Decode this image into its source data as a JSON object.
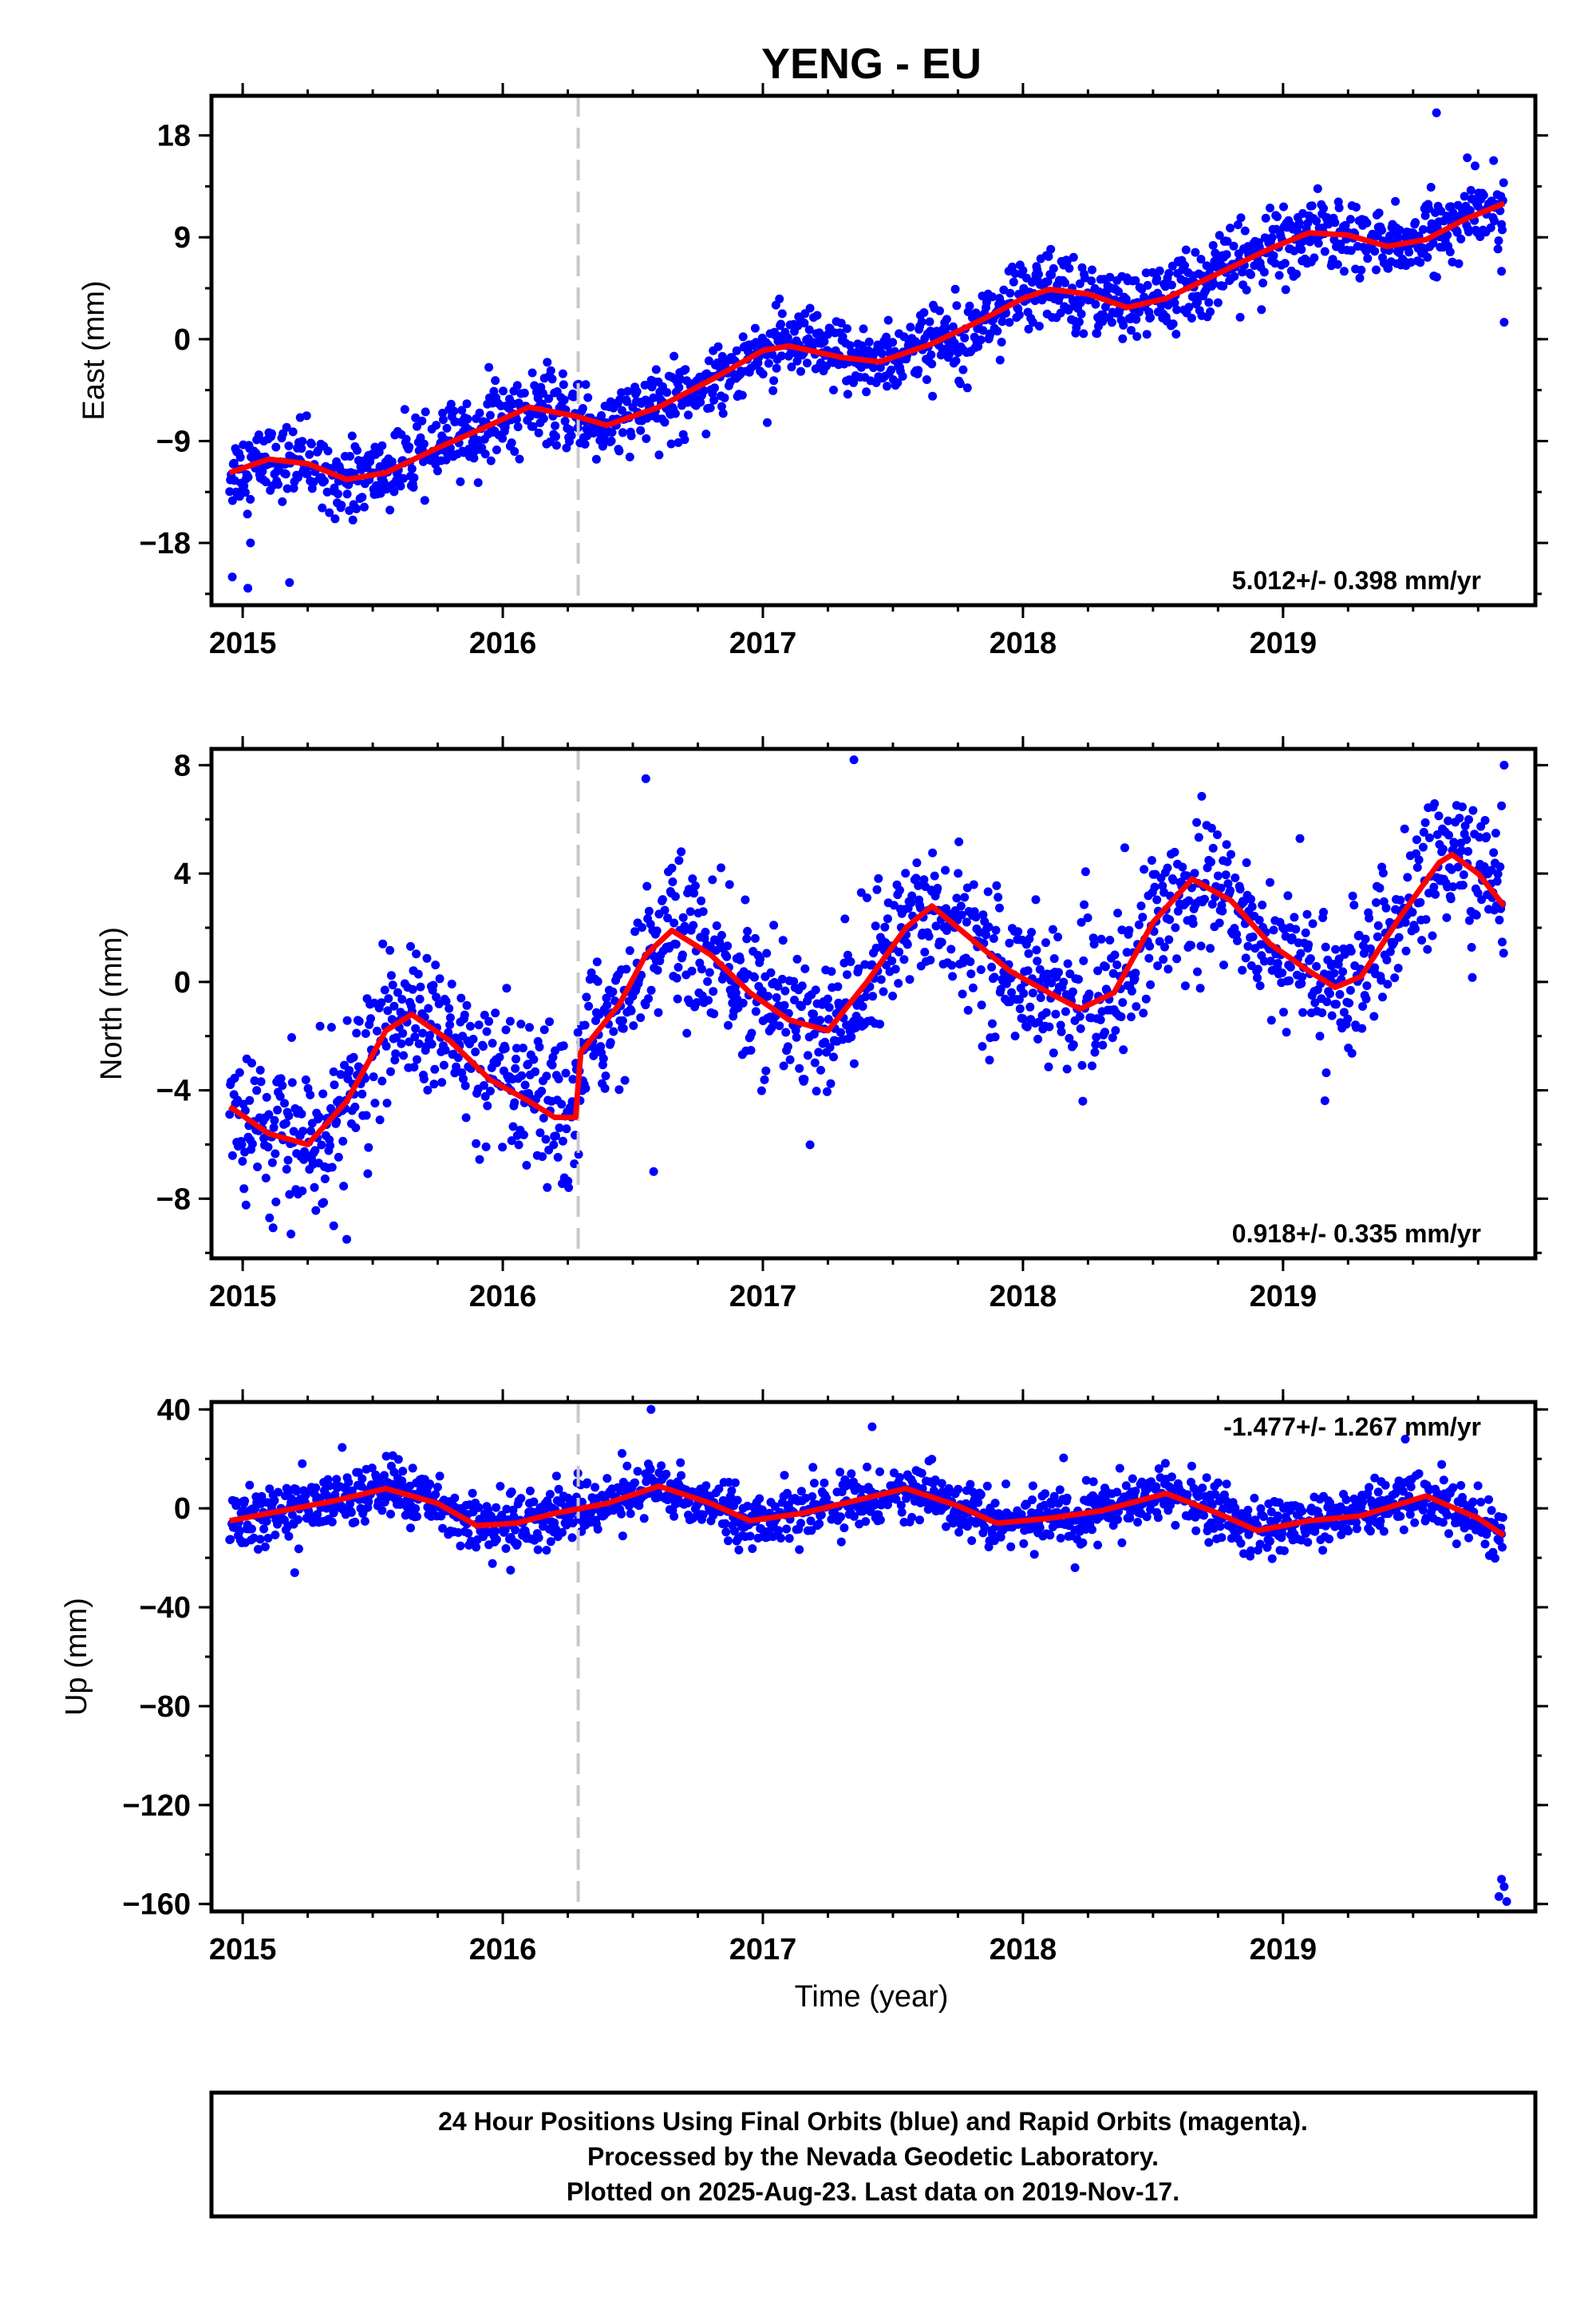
{
  "chart_data": {
    "type": "scatter",
    "title": "YENG - EU",
    "xlabel": "Time (year)",
    "xlim": [
      2014.88,
      2019.97
    ],
    "x_ticks": [
      2015,
      2016,
      2017,
      2018,
      2019
    ],
    "equipment_change_year": 2016.29,
    "colors": {
      "points": "#0000ff",
      "fit": "#ff0000",
      "marker_line": "#c8c8c8"
    },
    "panels": [
      {
        "ylabel": "East (mm)",
        "ylim": [
          -23.5,
          21.5
        ],
        "y_ticks": [
          -18,
          -9,
          0,
          9,
          18
        ],
        "rate_text": "5.012+/- 0.398 mm/yr",
        "trend": {
          "slope": 4.9,
          "offset": -11.5,
          "start": 2014.95
        },
        "seasonal": {
          "amp": 1.5,
          "phase": 0.3,
          "amp2": 0.5
        },
        "noise": 1.6,
        "fit": [
          [
            2014.95,
            -11.8
          ],
          [
            2015.1,
            -10.6
          ],
          [
            2015.25,
            -11.0
          ],
          [
            2015.4,
            -12.4
          ],
          [
            2015.55,
            -11.8
          ],
          [
            2015.75,
            -9.6
          ],
          [
            2015.95,
            -7.6
          ],
          [
            2016.1,
            -6.0
          ],
          [
            2016.28,
            -6.8
          ],
          [
            2016.4,
            -7.6
          ],
          [
            2016.6,
            -6.0
          ],
          [
            2016.8,
            -3.6
          ],
          [
            2017.0,
            -1.0
          ],
          [
            2017.1,
            -0.6
          ],
          [
            2017.3,
            -1.6
          ],
          [
            2017.45,
            -2.0
          ],
          [
            2017.65,
            -0.4
          ],
          [
            2017.85,
            1.8
          ],
          [
            2018.0,
            3.6
          ],
          [
            2018.1,
            4.4
          ],
          [
            2018.25,
            4.0
          ],
          [
            2018.4,
            2.8
          ],
          [
            2018.55,
            3.6
          ],
          [
            2018.75,
            5.8
          ],
          [
            2018.95,
            8.0
          ],
          [
            2019.1,
            9.4
          ],
          [
            2019.25,
            9.2
          ],
          [
            2019.4,
            8.2
          ],
          [
            2019.55,
            8.8
          ],
          [
            2019.7,
            10.6
          ],
          [
            2019.85,
            12.0
          ]
        ],
        "outliers": [
          [
            2014.96,
            -21
          ],
          [
            2015.02,
            -22
          ],
          [
            2015.18,
            -21.5
          ],
          [
            2015.03,
            -18
          ],
          [
            2019.59,
            20
          ],
          [
            2019.85,
            1.5
          ],
          [
            2019.84,
            6
          ]
        ]
      },
      {
        "ylabel": "North (mm)",
        "ylim": [
          -10.2,
          8.6
        ],
        "y_ticks": [
          -8,
          -4,
          0,
          4,
          8
        ],
        "rate_text": "0.918+/- 0.335 mm/yr",
        "trend": {
          "slope": 1.0,
          "offset": -3.5,
          "start": 2014.95
        },
        "seasonal": {
          "amp": 2.6,
          "phase": 0.65,
          "amp2": 0.3
        },
        "noise": 1.3,
        "fit": [
          [
            2014.95,
            -4.6
          ],
          [
            2015.1,
            -5.6
          ],
          [
            2015.25,
            -6.0
          ],
          [
            2015.4,
            -4.4
          ],
          [
            2015.55,
            -1.8
          ],
          [
            2015.65,
            -1.2
          ],
          [
            2015.8,
            -2.2
          ],
          [
            2015.95,
            -3.6
          ],
          [
            2016.1,
            -4.4
          ],
          [
            2016.2,
            -5.0
          ],
          [
            2016.28,
            -5.0
          ],
          [
            2016.3,
            -2.6
          ],
          [
            2016.45,
            -0.8
          ],
          [
            2016.55,
            1.0
          ],
          [
            2016.65,
            1.9
          ],
          [
            2016.8,
            1.0
          ],
          [
            2016.95,
            -0.4
          ],
          [
            2017.1,
            -1.4
          ],
          [
            2017.25,
            -1.8
          ],
          [
            2017.4,
            0.0
          ],
          [
            2017.55,
            2.0
          ],
          [
            2017.65,
            2.8
          ],
          [
            2017.8,
            1.6
          ],
          [
            2017.95,
            0.4
          ],
          [
            2018.1,
            -0.4
          ],
          [
            2018.22,
            -1.0
          ],
          [
            2018.35,
            -0.4
          ],
          [
            2018.5,
            2.2
          ],
          [
            2018.65,
            3.8
          ],
          [
            2018.8,
            3.0
          ],
          [
            2018.95,
            1.4
          ],
          [
            2019.1,
            0.4
          ],
          [
            2019.2,
            -0.2
          ],
          [
            2019.3,
            0.2
          ],
          [
            2019.45,
            2.4
          ],
          [
            2019.6,
            4.4
          ],
          [
            2019.65,
            4.7
          ],
          [
            2019.75,
            4.0
          ],
          [
            2019.85,
            2.8
          ]
        ],
        "outliers": [
          [
            2015.4,
            -9.5
          ],
          [
            2015.35,
            -9.0
          ],
          [
            2016.55,
            7.5
          ],
          [
            2017.35,
            8.2
          ],
          [
            2016.58,
            -7.0
          ],
          [
            2019.85,
            8.0
          ],
          [
            2019.84,
            6.5
          ]
        ]
      },
      {
        "ylabel": "Up (mm)",
        "ylim": [
          -163,
          43
        ],
        "y_ticks": [
          -160,
          -120,
          -80,
          -40,
          0,
          40
        ],
        "rate_text": "-1.477+/- 1.267 mm/yr",
        "trend": {
          "slope": -1.5,
          "offset": 0.0,
          "start": 2014.95
        },
        "seasonal": {
          "amp": 6.0,
          "phase": 0.33,
          "amp2": 1.0
        },
        "noise": 5.5,
        "fit": [
          [
            2014.95,
            -5.0
          ],
          [
            2015.15,
            -1.0
          ],
          [
            2015.35,
            3.0
          ],
          [
            2015.55,
            8.0
          ],
          [
            2015.75,
            2.0
          ],
          [
            2015.9,
            -7.0
          ],
          [
            2016.05,
            -6.0
          ],
          [
            2016.2,
            -2.0
          ],
          [
            2016.4,
            2.0
          ],
          [
            2016.6,
            9.0
          ],
          [
            2016.8,
            2.0
          ],
          [
            2016.95,
            -5.0
          ],
          [
            2017.15,
            -2.0
          ],
          [
            2017.35,
            3.0
          ],
          [
            2017.55,
            8.0
          ],
          [
            2017.75,
            1.0
          ],
          [
            2017.9,
            -6.0
          ],
          [
            2018.1,
            -4.0
          ],
          [
            2018.3,
            -1.0
          ],
          [
            2018.55,
            6.0
          ],
          [
            2018.75,
            -2.0
          ],
          [
            2018.9,
            -9.0
          ],
          [
            2019.1,
            -5.0
          ],
          [
            2019.3,
            -3.0
          ],
          [
            2019.55,
            5.0
          ],
          [
            2019.75,
            -4.0
          ],
          [
            2019.85,
            -11.0
          ]
        ],
        "outliers": [
          [
            2019.84,
            -150
          ],
          [
            2019.85,
            -153
          ],
          [
            2019.83,
            -157
          ],
          [
            2019.86,
            -159
          ],
          [
            2016.57,
            40
          ],
          [
            2017.42,
            33
          ],
          [
            2018.2,
            -24
          ],
          [
            2016.03,
            -25
          ],
          [
            2015.2,
            -26
          ],
          [
            2019.47,
            28
          ]
        ]
      }
    ]
  },
  "footer": {
    "line1": "24 Hour Positions Using Final Orbits (blue) and Rapid Orbits (magenta).",
    "line2": "Processed by the Nevada Geodetic Laboratory.",
    "line3": "Plotted on 2025-Aug-23. Last data on 2019-Nov-17."
  }
}
